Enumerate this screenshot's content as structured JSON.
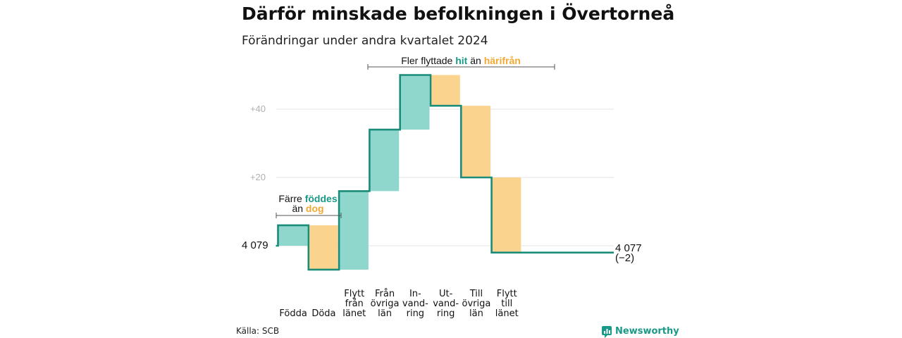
{
  "title": "Därför minskade befolkningen i Övertorneå",
  "subtitle": "Förändringar under andra kvartalet 2024",
  "source": "Källa: SCB",
  "brand": "Newsworthy",
  "colors": {
    "increase": "#8fd6cc",
    "decrease": "#fad48f",
    "line": "#1a8c7a",
    "teal_text": "#1a9988",
    "orange_text": "#f2a933",
    "grid": "#e3e3e3"
  },
  "annotations": {
    "left": {
      "line1_prefix": "Färre",
      "line1_highlight": "föddes",
      "line2_prefix": "än",
      "line2_highlight": "dog"
    },
    "top": {
      "prefix": "Fler flyttade",
      "highlight1": "hit",
      "middle": "än",
      "highlight2": "härifrån"
    }
  },
  "chart_data": {
    "type": "waterfall",
    "title": "Därför minskade befolkningen i Övertorneå",
    "subtitle": "Förändringar under andra kvartalet 2024",
    "start_value": 4079,
    "start_label": "4 079",
    "end_value": 4077,
    "end_label": "4 077",
    "end_change_label": "(−2)",
    "y_ticks": [
      {
        "value": 20,
        "label": "+20"
      },
      {
        "value": 40,
        "label": "+40"
      }
    ],
    "grid": true,
    "steps": [
      {
        "label_lines": [
          "Födda"
        ],
        "change": 6
      },
      {
        "label_lines": [
          "Döda"
        ],
        "change": -13
      },
      {
        "label_lines": [
          "Flytt",
          "från",
          "länet"
        ],
        "change": 23
      },
      {
        "label_lines": [
          "Från",
          "övriga",
          "län"
        ],
        "change": 18
      },
      {
        "label_lines": [
          "In-",
          "vand-",
          "ring"
        ],
        "change": 16
      },
      {
        "label_lines": [
          "Ut-",
          "vand-",
          "ring"
        ],
        "change": -9
      },
      {
        "label_lines": [
          "Till",
          "övriga",
          "län"
        ],
        "change": -21
      },
      {
        "label_lines": [
          "Flytt",
          "till",
          "länet"
        ],
        "change": -22
      }
    ]
  }
}
